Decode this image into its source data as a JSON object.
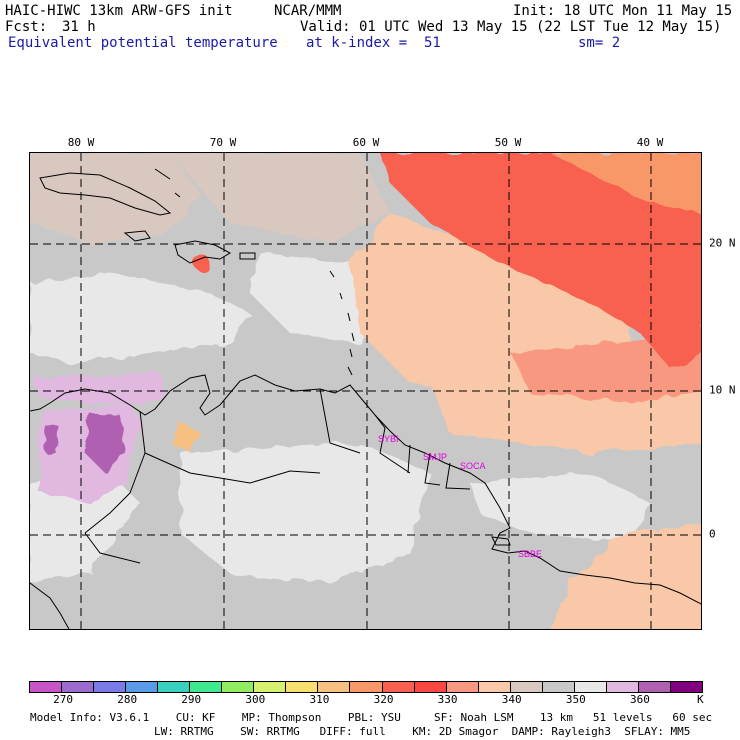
{
  "header": {
    "model": "HAIC-HIWC 13km ARW-GFS init",
    "center": "NCAR/MMM",
    "init": "Init: 18 UTC Mon 11 May 15",
    "fcst_label": "Fcst:",
    "fcst_value": "31 h",
    "valid": "Valid: 01 UTC Wed 13 May 15 (22 LST Tue 12 May 15)",
    "field": "Equivalent potential temperature",
    "level": "at k-index =  51",
    "smooth": "sm= 2"
  },
  "map": {
    "lon_labels": [
      "80 W",
      "70 W",
      "60 W",
      "50 W",
      "40 W"
    ],
    "lat_labels": [
      "20 N",
      "10 N",
      "0"
    ],
    "stations": [
      "SYBI",
      "SMJP",
      "SOCA",
      "SBBE"
    ]
  },
  "colorbar": {
    "labels": [
      "270",
      "280",
      "290",
      "300",
      "310",
      "320",
      "330",
      "340",
      "350",
      "360"
    ],
    "unit": "K",
    "colors": [
      "#c855c8",
      "#9b6bd0",
      "#7b7be8",
      "#5a9be8",
      "#3ad0c0",
      "#40e890",
      "#90ec60",
      "#d8f070",
      "#f8e070",
      "#f8c080",
      "#f89868",
      "#f86050",
      "#f84840",
      "#f89880",
      "#f8c8a8",
      "#d8c8c0",
      "#c8c8c8",
      "#e8e8e8",
      "#e0b8e0",
      "#b060b0",
      "#800080"
    ]
  },
  "footer": {
    "line1": "Model Info: V3.6.1    CU: KF    MP: Thompson    PBL: YSU     SF: Noah LSM    13 km   51 levels   60 sec",
    "line2": "LW: RRTMG    SW: RRTMG   DIFF: full    KM: 2D Smagor  DAMP: Rayleigh3  SFLAY: MM5"
  }
}
